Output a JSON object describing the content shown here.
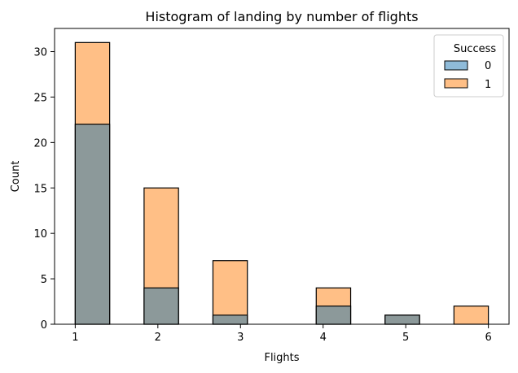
{
  "chart_data": {
    "type": "bar",
    "title": "Histogram of landing by number of flights",
    "xlabel": "Flights",
    "ylabel": "Count",
    "xlim": [
      0.75,
      6.25
    ],
    "ylim": [
      0,
      32.55
    ],
    "xticks": [
      "1",
      "2",
      "3",
      "4",
      "5",
      "6"
    ],
    "yticks": [
      "0",
      "5",
      "10",
      "15",
      "20",
      "25",
      "30"
    ],
    "bins": [
      [
        1.0,
        1.4167
      ],
      [
        1.4167,
        1.8333
      ],
      [
        1.8333,
        2.25
      ],
      [
        2.25,
        2.6667
      ],
      [
        2.6667,
        3.0833
      ],
      [
        3.0833,
        3.5
      ],
      [
        3.5,
        3.9167
      ],
      [
        3.9167,
        4.3333
      ],
      [
        4.3333,
        4.75
      ],
      [
        4.75,
        5.1667
      ],
      [
        5.1667,
        5.5833
      ],
      [
        5.5833,
        6.0
      ]
    ],
    "series": [
      {
        "name": "0",
        "color": "#1f77b4",
        "values": [
          22,
          0,
          4,
          0,
          1,
          0,
          0,
          2,
          0,
          1,
          0,
          0
        ]
      },
      {
        "name": "1",
        "color": "#ff7f0e",
        "values": [
          9,
          0,
          11,
          0,
          6,
          0,
          0,
          2,
          0,
          0,
          0,
          2
        ]
      }
    ],
    "overlap_color": "#8c999a",
    "legend": {
      "title": "Success",
      "placement": "top-right"
    },
    "grid": false
  }
}
